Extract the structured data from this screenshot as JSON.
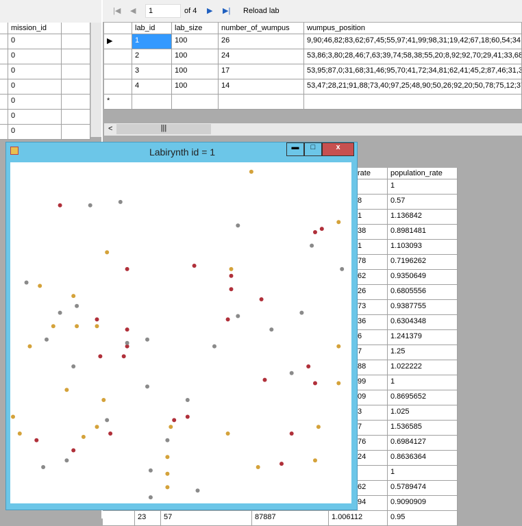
{
  "left_grid": {
    "columns": [
      "mission_id"
    ],
    "rows": [
      "0",
      "0",
      "0",
      "0",
      "0",
      "0",
      "0"
    ]
  },
  "toolbar": {
    "position": "1",
    "count": "of 4",
    "reload": "Reload lab"
  },
  "lab_grid": {
    "columns": [
      "lab_id",
      "lab_size",
      "number_of_wumpus",
      "wumpus_position"
    ],
    "rows": [
      [
        "1",
        "100",
        "26",
        "9,90;46,82;83,62;67,45;55,97;41,99;98,31;19,42;67,18;60,54;34,5"
      ],
      [
        "2",
        "100",
        "24",
        "53,86;3,80;28,46;7,63;39,74;58,38;55,20;8,92;92,70;29,41;33,68;5"
      ],
      [
        "3",
        "100",
        "17",
        "53,95;87,0;31,68;31,46;95,70;41,72;34,81;62,41;45,2;87,46;31,35"
      ],
      [
        "4",
        "100",
        "14",
        "53,47;28,21;91,88;73,40;97,25;48,90;50,26;92,20;50,78;75,12;37,"
      ]
    ]
  },
  "population_grid": {
    "columns": [
      "rate",
      "population_rate"
    ],
    "rows": [
      [
        "",
        "1"
      ],
      [
        "8",
        "0.57"
      ],
      [
        "1",
        "1.136842"
      ],
      [
        "38",
        "0.8981481"
      ],
      [
        "1",
        "1.103093"
      ],
      [
        "78",
        "0.7196262"
      ],
      [
        "62",
        "0.9350649"
      ],
      [
        "26",
        "0.6805556"
      ],
      [
        "73",
        "0.9387755"
      ],
      [
        "36",
        "0.6304348"
      ],
      [
        "6",
        "1.241379"
      ],
      [
        "7",
        "1.25"
      ],
      [
        "88",
        "1.022222"
      ],
      [
        "99",
        "1"
      ],
      [
        "09",
        "0.8695652"
      ],
      [
        "3",
        "1.025"
      ],
      [
        "7",
        "1.536585"
      ],
      [
        "76",
        "0.6984127"
      ],
      [
        "24",
        "0.8636364"
      ],
      [
        "",
        "1"
      ],
      [
        "62",
        "0.5789474"
      ],
      [
        "94",
        "0.9090909"
      ]
    ],
    "partial_row": [
      "23",
      "57",
      "87887",
      "1.006112",
      "0.95"
    ]
  },
  "labyrinth": {
    "title": "Labirynth id = 1",
    "series": [
      {
        "color": "#d4a23a",
        "points": [
          [
            71,
            2
          ],
          [
            97,
            17
          ],
          [
            28,
            26
          ],
          [
            65,
            31
          ],
          [
            8,
            36
          ],
          [
            18,
            39
          ],
          [
            12,
            48
          ],
          [
            19,
            48
          ],
          [
            25,
            48
          ],
          [
            5,
            54
          ],
          [
            97,
            54
          ],
          [
            16,
            67
          ],
          [
            27,
            70
          ],
          [
            97,
            65
          ],
          [
            0,
            75
          ],
          [
            2,
            80
          ],
          [
            21,
            81
          ],
          [
            25,
            78
          ],
          [
            47,
            78
          ],
          [
            64,
            80
          ],
          [
            91,
            78
          ],
          [
            46,
            87
          ],
          [
            46,
            92
          ],
          [
            46,
            96
          ],
          [
            73,
            90
          ],
          [
            90,
            88
          ]
        ]
      },
      {
        "color": "#b0303a",
        "points": [
          [
            14,
            12
          ],
          [
            90,
            20
          ],
          [
            92,
            19
          ],
          [
            34,
            31
          ],
          [
            54,
            30
          ],
          [
            65,
            33
          ],
          [
            65,
            37
          ],
          [
            74,
            40
          ],
          [
            25,
            46
          ],
          [
            34,
            49
          ],
          [
            64,
            46
          ],
          [
            34,
            54
          ],
          [
            26,
            57
          ],
          [
            33,
            57
          ],
          [
            88,
            60
          ],
          [
            75,
            64
          ],
          [
            90,
            65
          ],
          [
            48,
            76
          ],
          [
            52,
            75
          ],
          [
            29,
            80
          ],
          [
            7,
            82
          ],
          [
            83,
            80
          ],
          [
            18,
            85
          ],
          [
            80,
            89
          ]
        ]
      },
      {
        "color": "#8a8a8a",
        "points": [
          [
            23,
            12
          ],
          [
            32,
            11
          ],
          [
            67,
            18
          ],
          [
            89,
            24
          ],
          [
            98,
            31
          ],
          [
            4,
            35
          ],
          [
            19,
            42
          ],
          [
            14,
            44
          ],
          [
            67,
            45
          ],
          [
            86,
            44
          ],
          [
            77,
            49
          ],
          [
            10,
            52
          ],
          [
            40,
            52
          ],
          [
            34,
            53
          ],
          [
            60,
            54
          ],
          [
            18,
            60
          ],
          [
            83,
            62
          ],
          [
            40,
            66
          ],
          [
            52,
            70
          ],
          [
            28,
            76
          ],
          [
            46,
            82
          ],
          [
            16,
            88
          ],
          [
            9,
            90
          ],
          [
            41,
            91
          ],
          [
            55,
            97
          ],
          [
            41,
            99
          ]
        ]
      }
    ]
  }
}
